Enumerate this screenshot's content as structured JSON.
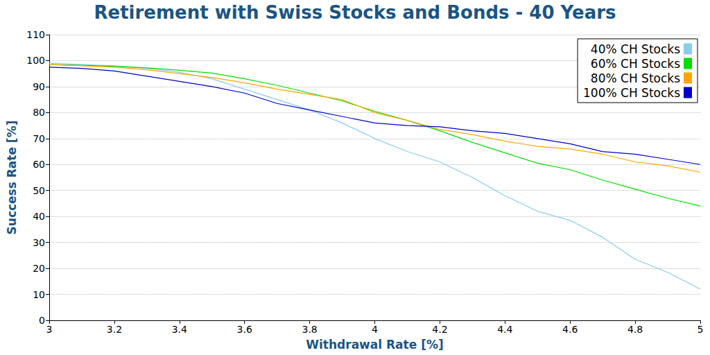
{
  "chart_data": {
    "type": "line",
    "title": "Retirement with Swiss Stocks and Bonds - 40 Years",
    "x_label": "Withdrawal Rate [%]",
    "y_label": "Success Rate [%]",
    "x": [
      3.0,
      3.1,
      3.2,
      3.3,
      3.4,
      3.5,
      3.6,
      3.7,
      3.8,
      3.9,
      4.0,
      4.1,
      4.2,
      4.3,
      4.4,
      4.5,
      4.6,
      4.7,
      4.8,
      4.9,
      5.0
    ],
    "series": [
      {
        "name": "40% CH Stocks",
        "color": "#87ceeb",
        "values": [
          99,
          98.5,
          98,
          97,
          95.5,
          93,
          89,
          85,
          81,
          76,
          70,
          65,
          61,
          55,
          48,
          42,
          38.5,
          32,
          23.5,
          18.5,
          12
        ]
      },
      {
        "name": "60% CH Stocks",
        "color": "#00dd00",
        "values": [
          98.5,
          98.2,
          97.8,
          97.2,
          96.3,
          95.2,
          93,
          90.5,
          87.5,
          84.5,
          80.5,
          77,
          73,
          68.5,
          64.5,
          60.5,
          58,
          54,
          50.5,
          47,
          44
        ]
      },
      {
        "name": "80% CH Stocks",
        "color": "#ffa500",
        "values": [
          98.5,
          98,
          97.5,
          96.5,
          95,
          93.5,
          91.5,
          89,
          87,
          85,
          80,
          77,
          73.5,
          71.5,
          69,
          67,
          66,
          64,
          61,
          59.5,
          57
        ]
      },
      {
        "name": "100% CH Stocks",
        "color": "#0000cc",
        "values": [
          97.5,
          97,
          96,
          94,
          92,
          90,
          87.5,
          83.5,
          81,
          78.5,
          76,
          75,
          74.5,
          73,
          72,
          70,
          68,
          65,
          64,
          62,
          60
        ]
      }
    ],
    "xlim": [
      3,
      5
    ],
    "xticks": [
      3,
      3.2,
      3.4,
      3.6,
      3.8,
      4,
      4.2,
      4.4,
      4.6,
      4.8,
      5
    ],
    "ylim": [
      0,
      110
    ],
    "yticks": [
      0,
      10,
      20,
      30,
      40,
      50,
      60,
      70,
      80,
      90,
      100,
      110
    ],
    "grid": true,
    "legend": "upper right"
  }
}
